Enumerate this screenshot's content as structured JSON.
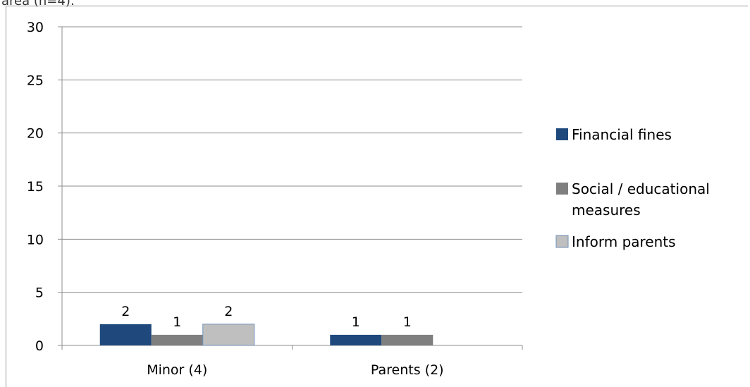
{
  "caption": "area (n=4):",
  "chart_data": {
    "type": "bar",
    "categories": [
      "Minor (4)",
      "Parents (2)"
    ],
    "series": [
      {
        "name": "Financial fines",
        "values": [
          2,
          1
        ],
        "color": "#1f497d",
        "labels": [
          "2",
          "1"
        ]
      },
      {
        "name": "Social / educational measures",
        "values": [
          1,
          1
        ],
        "color": "#7f7f7f",
        "labels": [
          "1",
          "1"
        ]
      },
      {
        "name": "Inform parents",
        "values": [
          2,
          null
        ],
        "color": "#bfbfbf",
        "labels": [
          "2",
          ""
        ]
      }
    ],
    "legend_lines": [
      [
        "Financial fines"
      ],
      [
        "Social / educational",
        "measures"
      ],
      [
        "Inform parents"
      ]
    ],
    "yticks": [
      "0",
      "5",
      "10",
      "15",
      "20",
      "25",
      "30"
    ],
    "ylim": [
      0,
      30
    ],
    "grid": true,
    "legend_position": "right",
    "title": "",
    "xlabel": "",
    "ylabel": ""
  }
}
